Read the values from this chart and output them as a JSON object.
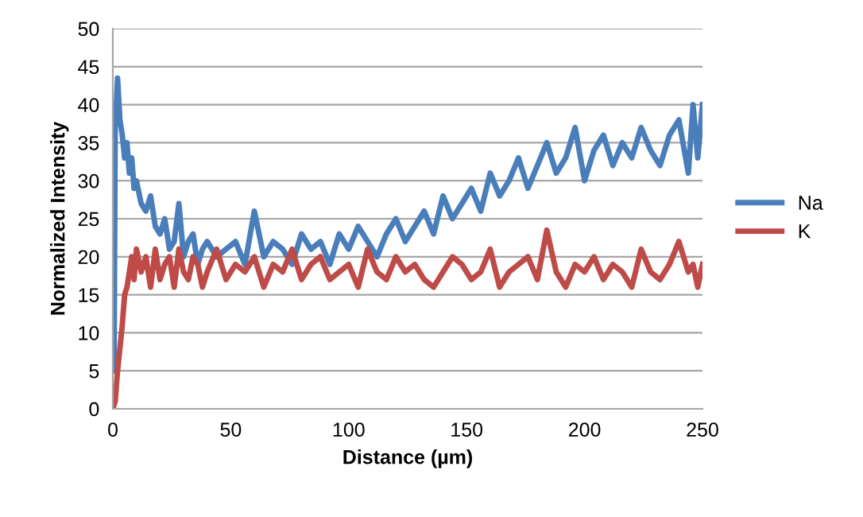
{
  "chart_data": {
    "type": "line",
    "xlabel": "Distance (µm)",
    "ylabel": "Normalized Intensity",
    "xlim": [
      0,
      250
    ],
    "ylim": [
      0,
      50
    ],
    "xticks": [
      0,
      50,
      100,
      150,
      200,
      250
    ],
    "yticks": [
      0,
      5,
      10,
      15,
      20,
      25,
      30,
      35,
      40,
      45,
      50
    ],
    "grid": "y",
    "legend": "right",
    "line_style": "solid",
    "marker": "none",
    "series": [
      {
        "name": "Na",
        "color": "#4a7ebb",
        "x": [
          0.5,
          1,
          2,
          3,
          4,
          5,
          6,
          7,
          8,
          9,
          10,
          12,
          14,
          16,
          18,
          20,
          22,
          24,
          26,
          28,
          30,
          32,
          34,
          36,
          38,
          40,
          44,
          48,
          52,
          56,
          60,
          64,
          68,
          72,
          76,
          80,
          84,
          88,
          92,
          96,
          100,
          104,
          108,
          112,
          116,
          120,
          124,
          128,
          132,
          136,
          140,
          144,
          148,
          152,
          156,
          160,
          164,
          168,
          172,
          176,
          180,
          184,
          188,
          192,
          196,
          200,
          204,
          208,
          212,
          216,
          220,
          224,
          228,
          232,
          236,
          240,
          244,
          246,
          248,
          250
        ],
        "values": [
          5,
          37,
          43.5,
          38,
          36,
          33,
          35,
          31,
          33,
          29,
          30,
          27,
          26,
          28,
          24,
          23,
          25,
          21,
          22,
          27,
          20,
          22,
          23,
          19,
          21,
          22,
          20,
          21,
          22,
          19,
          26,
          20,
          22,
          21,
          19,
          23,
          21,
          22,
          19,
          23,
          21,
          24,
          22,
          20,
          23,
          25,
          22,
          24,
          26,
          23,
          28,
          25,
          27,
          29,
          26,
          31,
          28,
          30,
          33,
          29,
          32,
          35,
          31,
          33,
          37,
          30,
          34,
          36,
          32,
          35,
          33,
          37,
          34,
          32,
          36,
          38,
          31,
          40,
          33,
          40
        ]
      },
      {
        "name": "K",
        "color": "#be4b48",
        "x": [
          0.5,
          1,
          2,
          3,
          4,
          5,
          6,
          7,
          8,
          9,
          10,
          12,
          14,
          16,
          18,
          20,
          22,
          24,
          26,
          28,
          30,
          32,
          34,
          36,
          38,
          40,
          44,
          48,
          52,
          56,
          60,
          64,
          68,
          72,
          76,
          80,
          84,
          88,
          92,
          96,
          100,
          104,
          108,
          112,
          116,
          120,
          124,
          128,
          132,
          136,
          140,
          144,
          148,
          152,
          156,
          160,
          164,
          168,
          172,
          176,
          180,
          184,
          188,
          192,
          196,
          200,
          204,
          208,
          212,
          216,
          220,
          224,
          228,
          232,
          236,
          240,
          244,
          246,
          248,
          250
        ],
        "values": [
          0.5,
          1,
          5,
          8,
          11,
          15,
          16,
          18,
          20,
          17,
          21,
          18,
          20,
          16,
          21,
          17,
          19,
          20,
          16,
          21,
          18,
          17,
          20,
          19,
          16,
          18,
          21,
          17,
          19,
          18,
          20,
          16,
          19,
          18,
          21,
          17,
          19,
          20,
          17,
          18,
          19,
          16,
          21,
          18,
          17,
          20,
          18,
          19,
          17,
          16,
          18,
          20,
          19,
          17,
          18,
          21,
          16,
          18,
          19,
          20,
          17,
          23.5,
          18,
          16,
          19,
          18,
          20,
          17,
          19,
          18,
          16,
          21,
          18,
          17,
          19,
          22,
          18,
          19,
          16,
          19
        ]
      }
    ]
  }
}
